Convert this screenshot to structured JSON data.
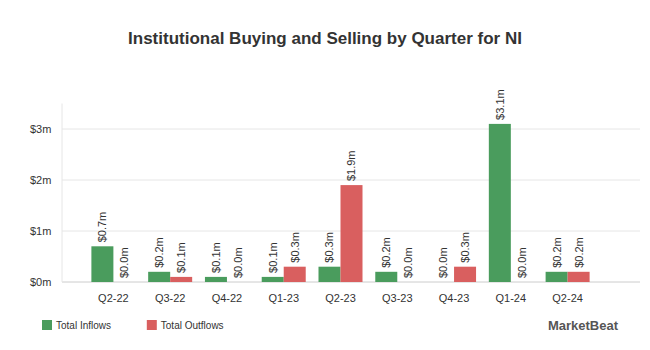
{
  "chart_data": {
    "type": "bar",
    "title": "Institutional Buying and Selling by Quarter for NI",
    "categories": [
      "Q2-22",
      "Q3-22",
      "Q4-22",
      "Q1-23",
      "Q2-23",
      "Q3-23",
      "Q4-23",
      "Q1-24",
      "Q2-24"
    ],
    "series": [
      {
        "name": "Total Inflows",
        "color": "#4a9c5d",
        "values": [
          0.7,
          0.2,
          0.1,
          0.1,
          0.3,
          0.2,
          0.0,
          3.1,
          0.2
        ],
        "value_labels": [
          "$0.7m",
          "$0.2m",
          "$0.1m",
          "$0.1m",
          "$0.3m",
          "$0.2m",
          "$0.0m",
          "$3.1m",
          "$0.2m"
        ]
      },
      {
        "name": "Total Outflows",
        "color": "#d95f5f",
        "values": [
          0.0,
          0.1,
          0.0,
          0.3,
          1.9,
          0.0,
          0.3,
          0.0,
          0.2
        ],
        "value_labels": [
          "$0.0m",
          "$0.1m",
          "$0.0m",
          "$0.3m",
          "$1.9m",
          "$0.0m",
          "$0.3m",
          "$0.0m",
          "$0.2m"
        ]
      }
    ],
    "ylim": [
      0,
      3.5
    ],
    "yticks": [
      {
        "value": 0,
        "label": "$0m"
      },
      {
        "value": 1,
        "label": "$1m"
      },
      {
        "value": 2,
        "label": "$2m"
      },
      {
        "value": 3,
        "label": "$3m"
      }
    ],
    "grid": true,
    "data_labels": true,
    "legend": "bottom-left",
    "annotations": [
      "MarketBeat"
    ]
  }
}
